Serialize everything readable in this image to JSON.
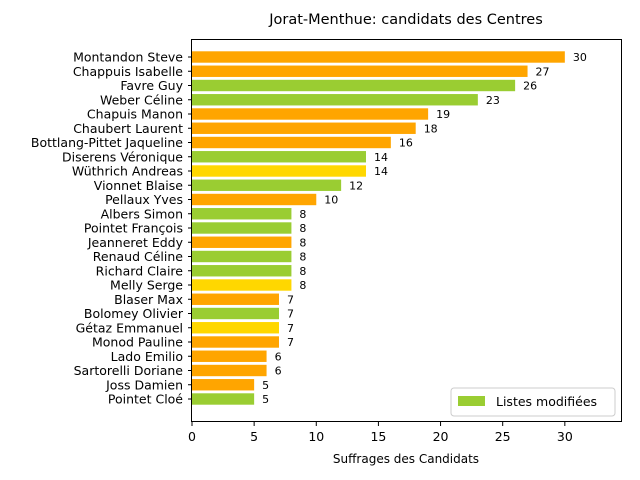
{
  "chart_data": {
    "type": "bar",
    "orientation": "horizontal",
    "title": "Jorat-Menthue: candidats des Centres",
    "xlabel": "Suffrages des Candidats",
    "ylabel": "",
    "xlim": [
      0,
      34.6
    ],
    "xticks": [
      0,
      5,
      10,
      15,
      20,
      25,
      30
    ],
    "grid": false,
    "legend": {
      "label": "Listes modifiées",
      "color": "#9acd32",
      "placement": "lower-right"
    },
    "colors": {
      "orange": "#ffa500",
      "green": "#9acd32",
      "gold": "#ffd700"
    },
    "bars": [
      {
        "name": "Montandon Steve",
        "value": 30,
        "color": "orange"
      },
      {
        "name": "Chappuis Isabelle",
        "value": 27,
        "color": "orange"
      },
      {
        "name": "Favre Guy",
        "value": 26,
        "color": "green"
      },
      {
        "name": "Weber Céline",
        "value": 23,
        "color": "green"
      },
      {
        "name": "Chapuis Manon",
        "value": 19,
        "color": "orange"
      },
      {
        "name": "Chaubert Laurent",
        "value": 18,
        "color": "orange"
      },
      {
        "name": "Bottlang-Pittet Jaqueline",
        "value": 16,
        "color": "orange"
      },
      {
        "name": "Diserens Véronique",
        "value": 14,
        "color": "green"
      },
      {
        "name": "Wüthrich Andreas",
        "value": 14,
        "color": "gold"
      },
      {
        "name": "Vionnet Blaise",
        "value": 12,
        "color": "green"
      },
      {
        "name": "Pellaux Yves",
        "value": 10,
        "color": "orange"
      },
      {
        "name": "Albers Simon",
        "value": 8,
        "color": "green"
      },
      {
        "name": "Pointet François",
        "value": 8,
        "color": "green"
      },
      {
        "name": "Jeanneret Eddy",
        "value": 8,
        "color": "orange"
      },
      {
        "name": "Renaud Céline",
        "value": 8,
        "color": "green"
      },
      {
        "name": "Richard Claire",
        "value": 8,
        "color": "green"
      },
      {
        "name": "Melly Serge",
        "value": 8,
        "color": "gold"
      },
      {
        "name": "Blaser Max",
        "value": 7,
        "color": "orange"
      },
      {
        "name": "Bolomey Olivier",
        "value": 7,
        "color": "green"
      },
      {
        "name": "Gétaz Emmanuel",
        "value": 7,
        "color": "gold"
      },
      {
        "name": "Monod Pauline",
        "value": 7,
        "color": "orange"
      },
      {
        "name": "Lado Emilio",
        "value": 6,
        "color": "orange"
      },
      {
        "name": "Sartorelli Doriane",
        "value": 6,
        "color": "orange"
      },
      {
        "name": "Joss Damien",
        "value": 5,
        "color": "orange"
      },
      {
        "name": "Pointet Cloé",
        "value": 5,
        "color": "green"
      }
    ]
  }
}
